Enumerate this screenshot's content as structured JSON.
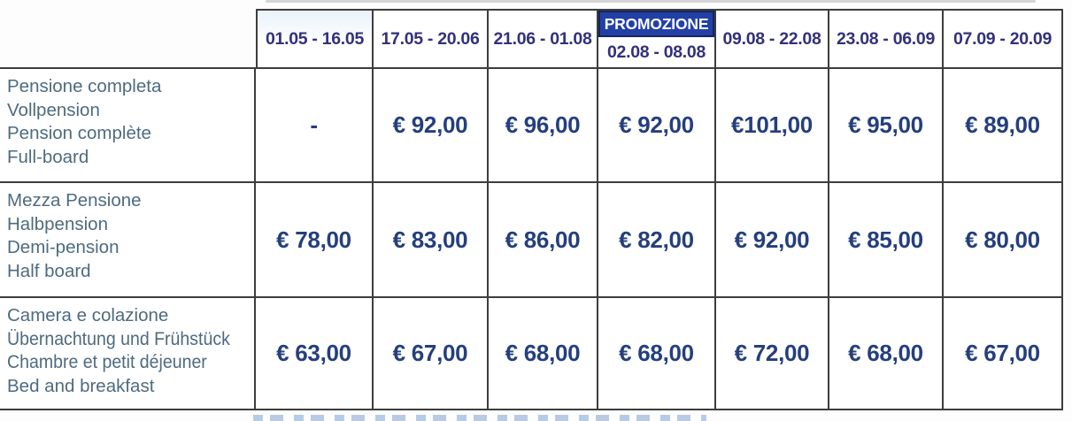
{
  "table": {
    "header": {
      "promo_label": "PROMOZIONE",
      "columns": [
        {
          "label": "01.05 - 16.05"
        },
        {
          "label": "17.05 - 20.06"
        },
        {
          "label": "21.06 - 01.08"
        },
        {
          "label": "02.08 - 08.08",
          "promo": true
        },
        {
          "label": "09.08 - 22.08"
        },
        {
          "label": "23.08 - 06.09"
        },
        {
          "label": "07.09 - 20.09"
        }
      ]
    },
    "rows": [
      {
        "labels": [
          "Pensione completa",
          "Vollpension",
          "Pension complète",
          "Full-board"
        ],
        "prices": [
          "-",
          "€ 92,00",
          "€ 96,00",
          "€ 92,00",
          "€101,00",
          "€ 95,00",
          "€ 89,00"
        ]
      },
      {
        "labels": [
          "Mezza Pensione",
          "Halbpension",
          "Demi-pension",
          "Half board"
        ],
        "prices": [
          "€ 78,00",
          "€ 83,00",
          "€ 86,00",
          "€ 82,00",
          "€ 92,00",
          "€ 85,00",
          "€ 80,00"
        ]
      },
      {
        "labels": [
          "Camera e colazione",
          "Übernachtung und Frühstück",
          "Chambre et petit déjeuner",
          "Bed and breakfast"
        ],
        "prices": [
          "€ 63,00",
          "€ 67,00",
          "€ 68,00",
          "€ 68,00",
          "€ 72,00",
          "€ 68,00",
          "€ 67,00"
        ]
      }
    ]
  },
  "colors": {
    "promo_background": "#2340a6",
    "promo_text": "#ffffff",
    "price_text": "#243f7e",
    "date_text": "#32317b",
    "label_text": "#4d6b80",
    "border": "#3d3d3d"
  }
}
